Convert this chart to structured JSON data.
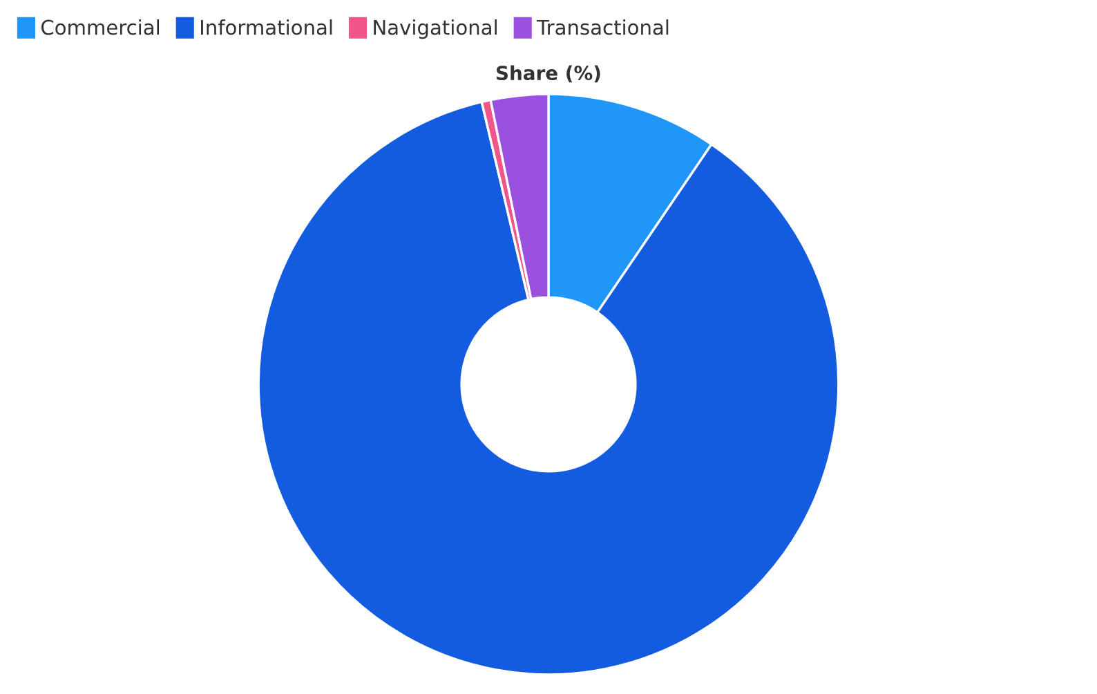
{
  "chart_data": {
    "type": "donut",
    "title": "Share (%)",
    "categories": [
      "Commercial",
      "Informational",
      "Navigational",
      "Transactional"
    ],
    "values": [
      9.5,
      86.8,
      0.5,
      3.2
    ],
    "colors": [
      "#2196f9",
      "#135ce0",
      "#f0568a",
      "#9b51e0"
    ],
    "legend": "top left"
  }
}
